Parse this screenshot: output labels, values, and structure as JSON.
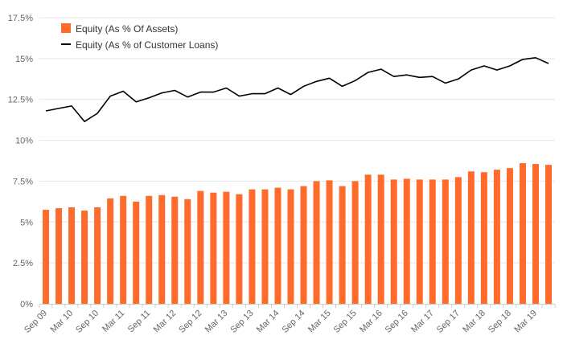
{
  "chart_data": {
    "type": "bar",
    "title": "",
    "xlabel": "",
    "ylabel": "",
    "ylim": [
      0,
      17.5
    ],
    "yticks": [
      0,
      2.5,
      5,
      7.5,
      10,
      12.5,
      15,
      17.5
    ],
    "ytick_labels": [
      "0%",
      "2.5%",
      "5%",
      "7.5%",
      "10%",
      "12.5%",
      "15%",
      "17.5%"
    ],
    "grid": true,
    "legend_position": "top-left",
    "colors": {
      "bars": "#ff6b2c",
      "line": "#000000"
    },
    "categories": [
      "Sep 09",
      "Dec 09",
      "Mar 10",
      "Jun 10",
      "Sep 10",
      "Dec 10",
      "Mar 11",
      "Jun 11",
      "Sep 11",
      "Dec 11",
      "Mar 12",
      "Jun 12",
      "Sep 12",
      "Dec 12",
      "Mar 13",
      "Jun 13",
      "Sep 13",
      "Dec 13",
      "Mar 14",
      "Jun 14",
      "Sep 14",
      "Dec 14",
      "Mar 15",
      "Jun 15",
      "Sep 15",
      "Dec 15",
      "Mar 16",
      "Jun 16",
      "Sep 16",
      "Dec 16",
      "Mar 17",
      "Jun 17",
      "Sep 17",
      "Dec 17",
      "Mar 18",
      "Jun 18",
      "Sep 18",
      "Dec 18",
      "Mar 19",
      "Jun 19"
    ],
    "xtick_labels": [
      "Sep 09",
      "Mar 10",
      "Sep 10",
      "Mar 11",
      "Sep 11",
      "Mar 12",
      "Sep 12",
      "Mar 13",
      "Sep 13",
      "Mar 14",
      "Sep 14",
      "Mar 15",
      "Sep 15",
      "Mar 16",
      "Sep 16",
      "Mar 17",
      "Sep 17",
      "Mar 18",
      "Sep 18",
      "Mar 19"
    ],
    "series": [
      {
        "name": "Equity (As % Of Assets)",
        "type": "bar",
        "values": [
          5.75,
          5.85,
          5.9,
          5.7,
          5.9,
          6.45,
          6.6,
          6.25,
          6.6,
          6.65,
          6.55,
          6.4,
          6.9,
          6.8,
          6.85,
          6.7,
          7.0,
          7.0,
          7.1,
          7.0,
          7.2,
          7.5,
          7.55,
          7.2,
          7.5,
          7.9,
          7.9,
          7.6,
          7.65,
          7.6,
          7.6,
          7.6,
          7.75,
          8.1,
          8.05,
          8.2,
          8.3,
          8.6,
          8.55,
          8.5
        ]
      },
      {
        "name": "Equity (As % of Customer Loans)",
        "type": "line",
        "values": [
          11.8,
          11.95,
          12.1,
          11.15,
          11.65,
          12.7,
          13.0,
          12.35,
          12.6,
          12.9,
          13.05,
          12.65,
          12.95,
          12.95,
          13.2,
          12.7,
          12.85,
          12.85,
          13.2,
          12.8,
          13.3,
          13.6,
          13.8,
          13.3,
          13.65,
          14.15,
          14.35,
          13.9,
          14.0,
          13.85,
          13.9,
          13.5,
          13.75,
          14.3,
          14.55,
          14.3,
          14.55,
          14.95,
          15.05,
          14.7
        ]
      }
    ]
  }
}
